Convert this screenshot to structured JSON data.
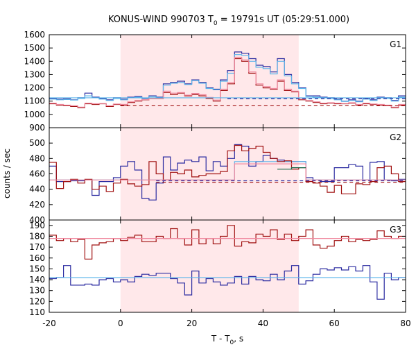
{
  "chart_data": {
    "type": "line",
    "title": "KONUS-WIND 990703 T",
    "title_sub": "0",
    "title_rest": " = 19791s UT (05:29:51.000)",
    "xlabel": "T - T",
    "xlabel_sub": "0",
    "xlabel_rest": ", s",
    "ylabel": "counts / sec",
    "xlim": [
      -20,
      80
    ],
    "x_ticks": [
      -20,
      0,
      20,
      40,
      60,
      80
    ],
    "x_tick_labels": [
      "-20",
      "0",
      "20",
      "40",
      "60",
      "80"
    ],
    "shaded_interval": [
      0,
      50
    ],
    "colors": {
      "shade": "#ffe8ea",
      "dark_red": "#a01010",
      "dark_blue": "#2a2aa0",
      "pink": "#f08aa0",
      "light_blue": "#5ab4ea",
      "dark_green": "#1a6a4a",
      "frame": "#000000"
    },
    "bin_edges": [
      -20,
      -18,
      -16,
      -14,
      -12,
      -10,
      -8,
      -6,
      -4,
      -2,
      0,
      2,
      4,
      6,
      8,
      10,
      12,
      14,
      16,
      18,
      20,
      22,
      24,
      26,
      28,
      30,
      32,
      34,
      36,
      38,
      40,
      42,
      44,
      46,
      48,
      50,
      52,
      54,
      56,
      58,
      60,
      62,
      64,
      66,
      68,
      70,
      72,
      74,
      76,
      78,
      80
    ],
    "panels": [
      {
        "label": "G1",
        "ylim": [
          900,
          1600
        ],
        "y_ticks": [
          900,
          1000,
          1100,
          1200,
          1300,
          1400,
          1500,
          1600
        ],
        "y_tick_labels": [
          "900",
          "1000",
          "1100",
          "1200",
          "1300",
          "1400",
          "1500",
          "1600"
        ],
        "series": [
          {
            "color": "dark_blue",
            "style": "step",
            "values": [
              1120,
              1115,
              1118,
              1110,
              1125,
              1160,
              1130,
              1120,
              1110,
              1125,
              1115,
              1130,
              1135,
              1120,
              1140,
              1130,
              1230,
              1240,
              1250,
              1230,
              1260,
              1240,
              1200,
              1190,
              1260,
              1330,
              1470,
              1460,
              1420,
              1370,
              1360,
              1320,
              1420,
              1300,
              1240,
              1200,
              1140,
              1140,
              1130,
              1125,
              1115,
              1100,
              1110,
              1100,
              1120,
              1110,
              1130,
              1125,
              1105,
              1140
            ]
          },
          {
            "color": "light_blue",
            "style": "step",
            "values": [
              1115,
              1110,
              1112,
              1108,
              1120,
              1140,
              1125,
              1115,
              1105,
              1118,
              1110,
              1125,
              1130,
              1118,
              1135,
              1125,
              1220,
              1235,
              1240,
              1225,
              1255,
              1235,
              1195,
              1185,
              1250,
              1310,
              1450,
              1445,
              1400,
              1355,
              1345,
              1305,
              1400,
              1290,
              1230,
              1195,
              1135,
              1130,
              1125,
              1118,
              1110,
              1098,
              1105,
              1095,
              1115,
              1105,
              1125,
              1120,
              1100,
              1130
            ]
          },
          {
            "color": "dark_red",
            "style": "step",
            "values": [
              1080,
              1070,
              1065,
              1060,
              1050,
              1080,
              1075,
              1080,
              1060,
              1075,
              1070,
              1090,
              1100,
              1110,
              1120,
              1120,
              1165,
              1150,
              1160,
              1140,
              1150,
              1140,
              1120,
              1100,
              1180,
              1230,
              1420,
              1400,
              1310,
              1220,
              1200,
              1190,
              1250,
              1180,
              1170,
              1110,
              1100,
              1090,
              1080,
              1085,
              1080,
              1080,
              1085,
              1070,
              1080,
              1075,
              1070,
              1065,
              1050,
              1070
            ]
          },
          {
            "color": "pink",
            "style": "step",
            "values": [
              1085,
              1075,
              1070,
              1065,
              1055,
              1085,
              1080,
              1082,
              1065,
              1078,
              1075,
              1095,
              1105,
              1112,
              1122,
              1122,
              1175,
              1160,
              1165,
              1145,
              1158,
              1148,
              1128,
              1108,
              1190,
              1240,
              1430,
              1410,
              1320,
              1230,
              1210,
              1195,
              1260,
              1190,
              1175,
              1115,
              1105,
              1095,
              1085,
              1088,
              1085,
              1082,
              1088,
              1075,
              1085,
              1078,
              1075,
              1070,
              1055,
              1075
            ]
          },
          {
            "color": "dark_blue",
            "style": "dashed",
            "from": 30,
            "to": 80,
            "level": 1118
          },
          {
            "color": "dark_red",
            "style": "dashed",
            "from": 0,
            "to": 80,
            "level": 1065
          },
          {
            "color": "light_blue",
            "style": "flat",
            "from": -20,
            "to": 80,
            "level": 1125
          }
        ]
      },
      {
        "label": "G2",
        "ylim": [
          400,
          520
        ],
        "y_ticks": [
          400,
          420,
          440,
          460,
          480,
          500
        ],
        "y_tick_labels": [
          "400",
          "420",
          "440",
          "460",
          "480",
          "500"
        ],
        "series": [
          {
            "color": "dark_blue",
            "style": "step",
            "values": [
              470,
              450,
              450,
              451,
              451,
              452,
              432,
              450,
              450,
              455,
              470,
              476,
              465,
              428,
              426,
              448,
              482,
              465,
              474,
              478,
              476,
              482,
              464,
              476,
              470,
              480,
              498,
              496,
              470,
              476,
              484,
              480,
              478,
              476,
              476,
              476,
              455,
              452,
              450,
              450,
              468,
              468,
              472,
              470,
              452,
              475,
              476,
              452,
              451,
              453
            ]
          },
          {
            "color": "light_blue",
            "style": "step",
            "values": [
              452,
              452,
              452,
              452,
              452,
              452,
              452,
              452,
              452,
              452,
              452,
              452,
              452,
              452,
              452,
              452,
              452,
              452,
              452,
              452,
              452,
              452,
              452,
              452,
              452,
              452,
              476,
              476,
              476,
              476,
              476,
              476,
              476,
              476,
              476,
              476,
              452,
              452,
              452,
              452,
              452,
              452,
              452,
              452,
              452,
              452,
              452,
              452,
              452,
              452
            ]
          },
          {
            "color": "dark_red",
            "style": "step",
            "values": [
              475,
              441,
              450,
              453,
              448,
              453,
              440,
              444,
              437,
              448,
              453,
              447,
              444,
              446,
              476,
              460,
              452,
              462,
              460,
              465,
              456,
              458,
              460,
              460,
              463,
              490,
              497,
              490,
              493,
              496,
              488,
              480,
              476,
              477,
              466,
              468,
              450,
              448,
              444,
              436,
              445,
              434,
              434,
              447,
              446,
              450,
              468,
              470,
              460,
              450
            ]
          },
          {
            "color": "pink",
            "style": "step",
            "values": [
              452,
              452,
              452,
              452,
              452,
              452,
              452,
              452,
              452,
              452,
              452,
              452,
              452,
              452,
              452,
              452,
              452,
              452,
              452,
              452,
              452,
              452,
              452,
              452,
              452,
              452,
              473,
              473,
              473,
              473,
              473,
              473,
              473,
              473,
              473,
              473,
              452,
              452,
              452,
              452,
              452,
              452,
              452,
              452,
              452,
              452,
              452,
              452,
              452,
              452
            ]
          },
          {
            "color": "dark_green",
            "style": "step_short",
            "from": 44,
            "to": 52,
            "values": [
              466,
              466,
              468,
              468
            ]
          },
          {
            "color": "dark_blue",
            "style": "dashed",
            "from": 10,
            "to": 80,
            "level": 451
          },
          {
            "color": "dark_red",
            "style": "dashed",
            "from": 10,
            "to": 80,
            "level": 449
          }
        ]
      },
      {
        "label": "G3",
        "ylim": [
          110,
          195
        ],
        "y_ticks": [
          110,
          120,
          130,
          140,
          150,
          160,
          170,
          180,
          190
        ],
        "y_tick_labels": [
          "110",
          "120",
          "130",
          "140",
          "150",
          "160",
          "170",
          "180",
          "190"
        ],
        "series": [
          {
            "color": "dark_red",
            "style": "step",
            "values": [
              181,
              176,
              178,
              175,
              177,
              159,
              172,
              174,
              175,
              178,
              176,
              179,
              181,
              175,
              175,
              180,
              178,
              187,
              178,
              172,
              186,
              173,
              178,
              173,
              180,
              190,
              171,
              175,
              174,
              182,
              180,
              186,
              177,
              182,
              176,
              180,
              186,
              172,
              169,
              171,
              176,
              180,
              175,
              177,
              176,
              177,
              185,
              180,
              178,
              180
            ]
          },
          {
            "color": "pink",
            "style": "flat",
            "from": -20,
            "to": 80,
            "level": 178
          },
          {
            "color": "dark_blue",
            "style": "step",
            "values": [
              141,
              142,
              153,
              135,
              135,
              136,
              135,
              140,
              141,
              138,
              140,
              138,
              143,
              145,
              144,
              146,
              146,
              141,
              137,
              126,
              148,
              137,
              141,
              138,
              135,
              137,
              143,
              136,
              143,
              140,
              139,
              145,
              140,
              148,
              153,
              136,
              139,
              145,
              150,
              149,
              151,
              149,
              152,
              148,
              153,
              138,
              122,
              146,
              140,
              142
            ]
          },
          {
            "color": "light_blue",
            "style": "flat",
            "from": -20,
            "to": 80,
            "level": 142
          }
        ]
      }
    ]
  }
}
